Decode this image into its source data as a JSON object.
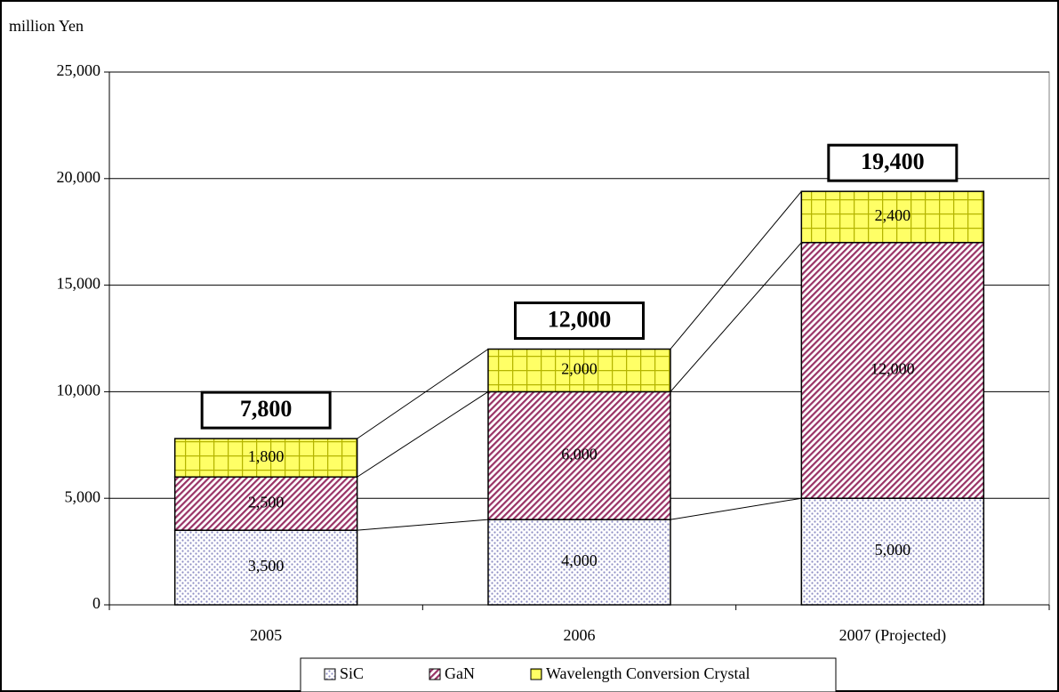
{
  "chart_data": {
    "type": "stacked_bar",
    "y_label": "million Yen",
    "categories": [
      "2005",
      "2006",
      "2007 (Projected)"
    ],
    "series": [
      {
        "name": "SiC",
        "color": "#8e8ec4",
        "pattern": "dots",
        "values": [
          3500,
          4000,
          5000
        ],
        "value_labels": [
          "3,500",
          "4,000",
          "5,000"
        ]
      },
      {
        "name": "GaN",
        "color": "#993366",
        "pattern": "diagonal",
        "values": [
          2500,
          6000,
          12000
        ],
        "value_labels": [
          "2,500",
          "6,000",
          "12,000"
        ]
      },
      {
        "name": "Wavelength Conversion Crystal",
        "color": "#ffff66",
        "pattern": "grid",
        "values": [
          1800,
          2000,
          2400
        ],
        "value_labels": [
          "1,800",
          "2,000",
          "2,400"
        ]
      }
    ],
    "totals": {
      "values": [
        7800,
        12000,
        19400
      ],
      "value_labels": [
        "7,800",
        "12,000",
        "19,400"
      ]
    },
    "ylim": [
      0,
      25000
    ],
    "yticks": [
      0,
      {
        "value": 5000,
        "label": "5,000"
      },
      {
        "value": 10000,
        "label": "10,000"
      },
      {
        "value": 15000,
        "label": "15,000"
      },
      {
        "value": 20000,
        "label": "20,000"
      },
      {
        "value": 25000,
        "label": "25,000"
      }
    ],
    "grid": true,
    "legend": "bottom"
  }
}
